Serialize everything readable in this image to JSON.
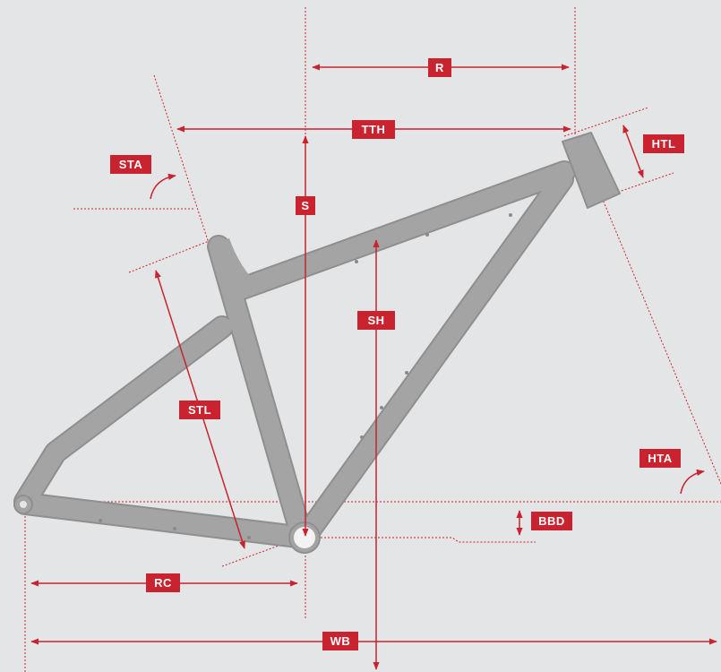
{
  "colors": {
    "background": "#e4e5e6",
    "frame": "#a3a3a3",
    "frame_outline": "#8e8e8e",
    "accent": "#c8232f",
    "guide": "#c8232f"
  },
  "labels": {
    "reach": "R",
    "top_tube_horizontal": "TTH",
    "head_tube_length": "HTL",
    "seat_tube_angle": "STA",
    "stack": "S",
    "standover_height": "SH",
    "seat_tube_length": "STL",
    "head_tube_angle": "HTA",
    "bb_drop": "BBD",
    "rear_center": "RC",
    "wheelbase": "WB"
  },
  "icons": [
    "curved-arrow-icon",
    "double-arrow-icon"
  ]
}
